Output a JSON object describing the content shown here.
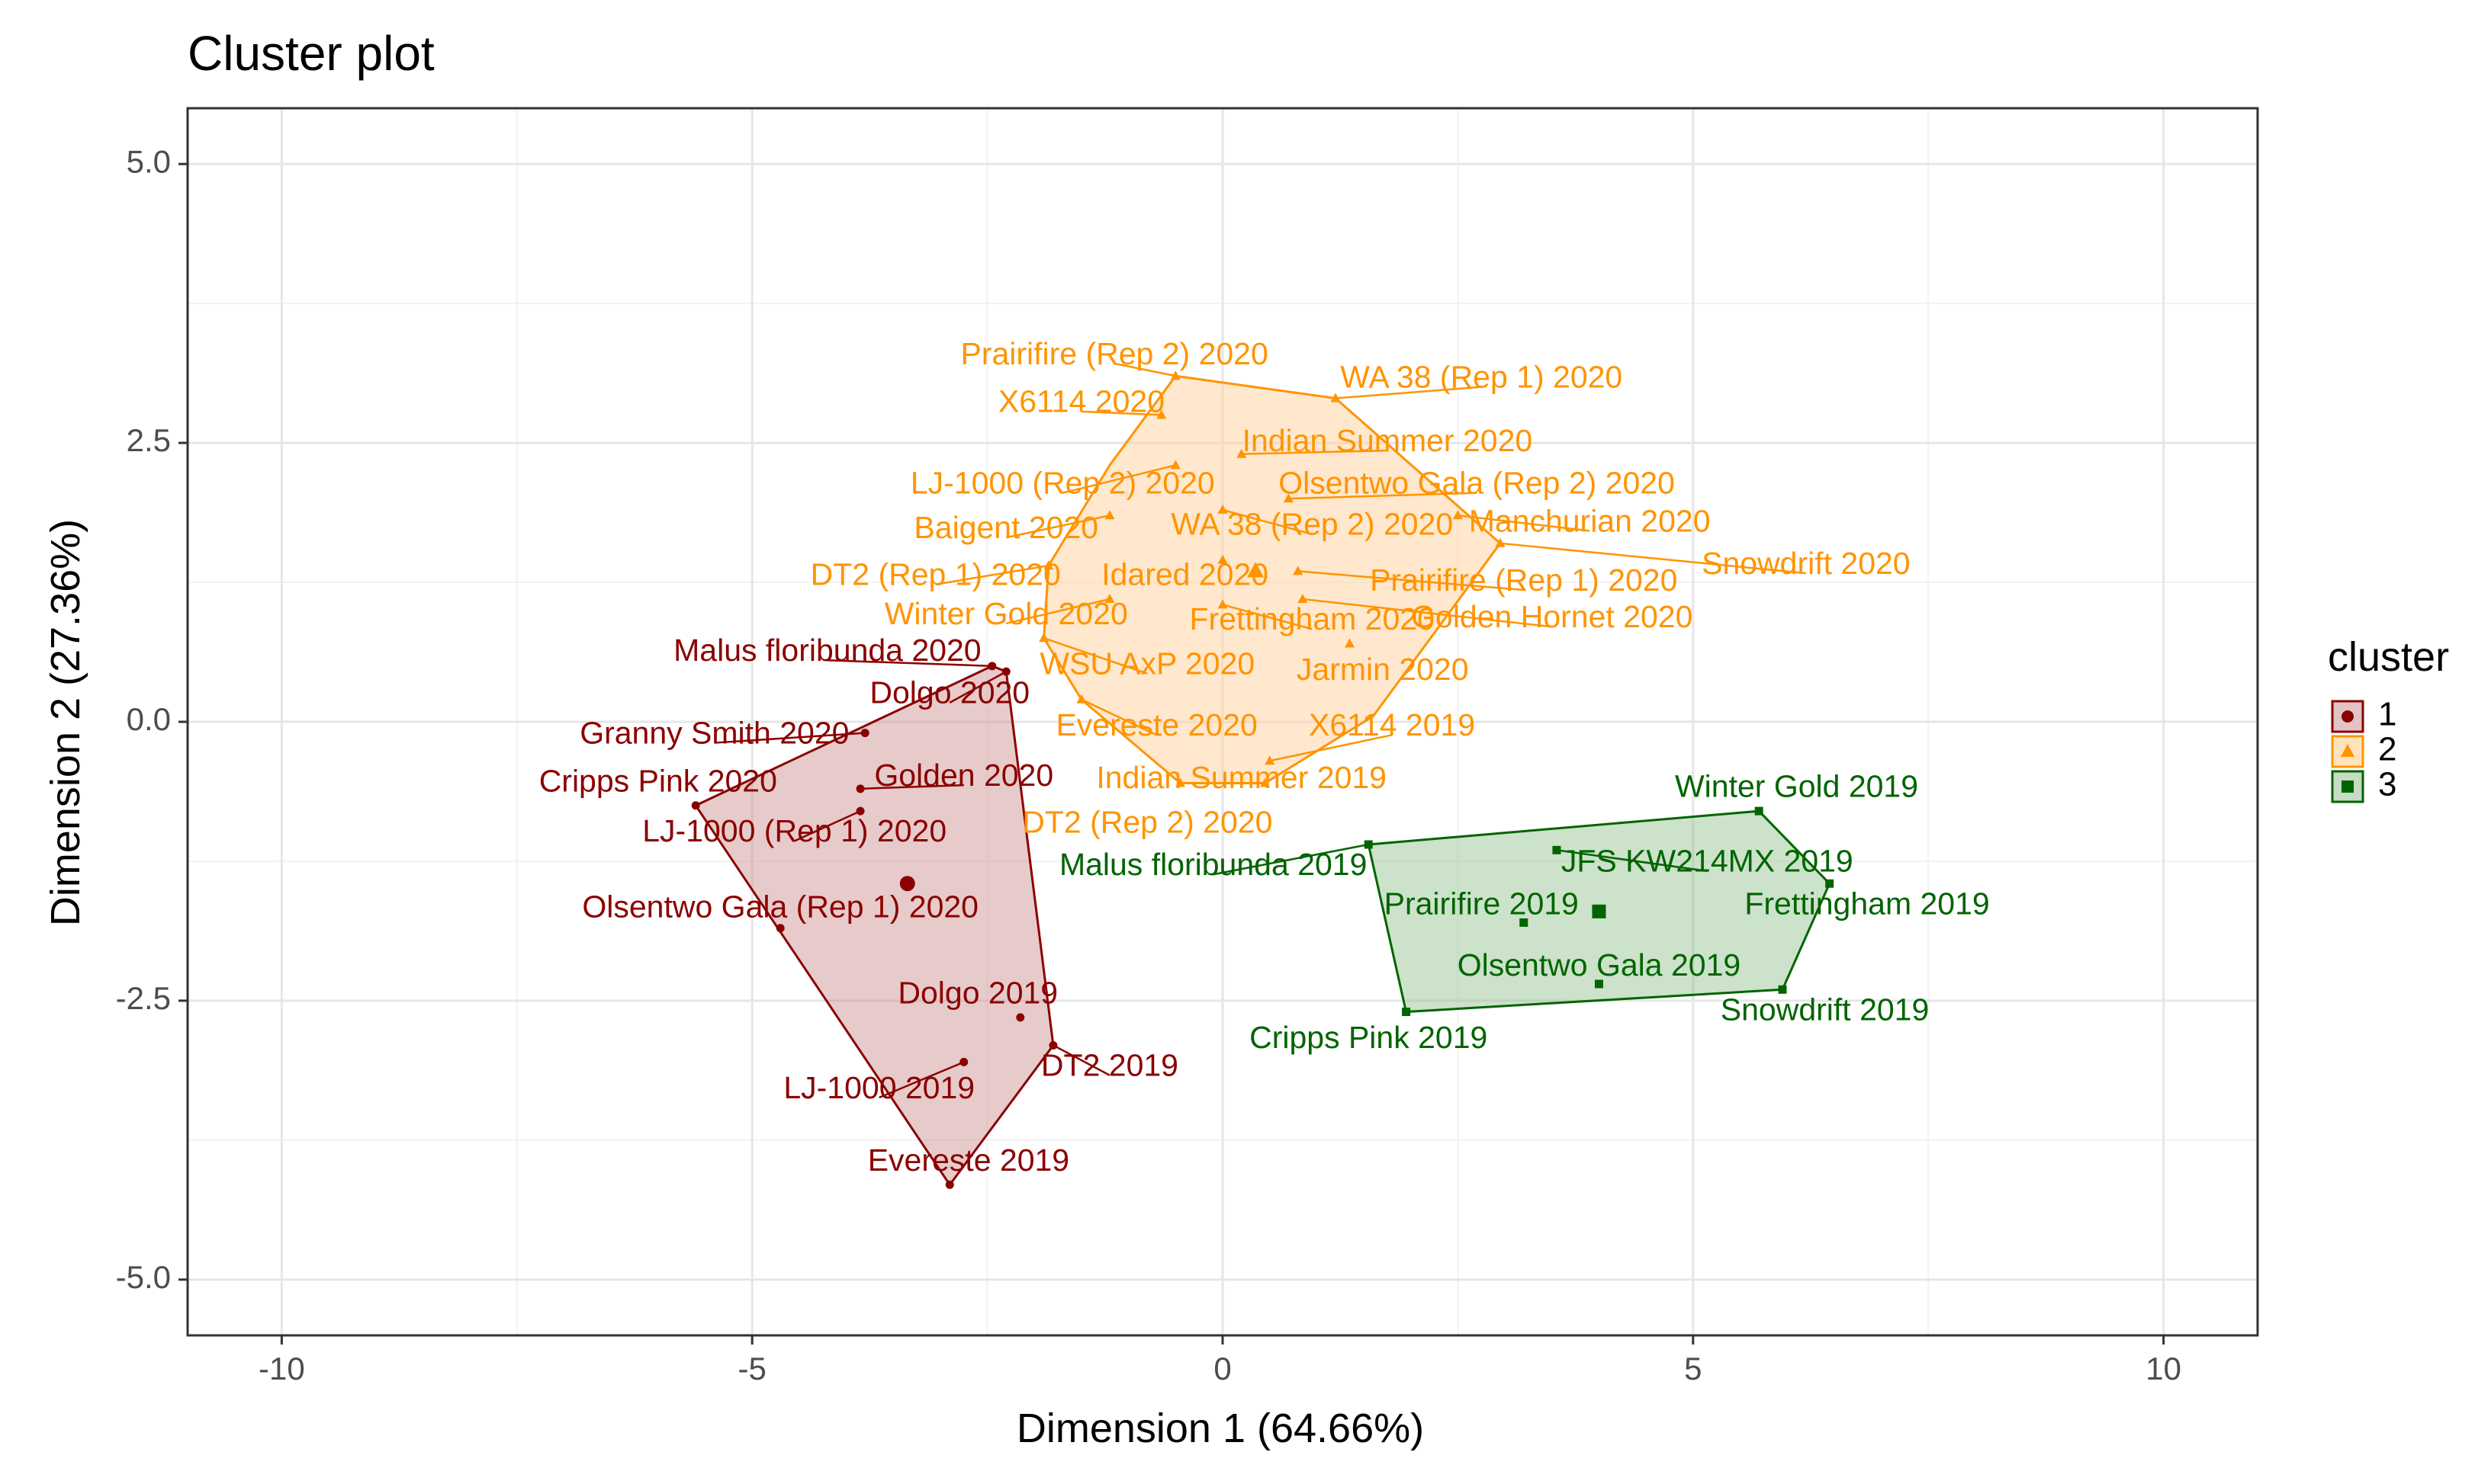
{
  "chart_data": {
    "type": "scatter",
    "title": "Cluster plot",
    "xlabel": "Dimension 1 (64.66%)",
    "ylabel": "Dimension 2 (27.36%)",
    "xlim": [
      -11,
      11
    ],
    "ylim": [
      -5.5,
      5.5
    ],
    "x_ticks": [
      -10,
      -5,
      0,
      5,
      10
    ],
    "x_tick_labels": [
      "-10",
      "-5",
      "0",
      "5",
      "10"
    ],
    "y_ticks": [
      -5,
      -2.5,
      0,
      2.5,
      5
    ],
    "y_tick_labels": [
      "-5.0",
      "-2.5",
      "0.0",
      "2.5",
      "5.0"
    ],
    "grid": true,
    "legend": {
      "title": "cluster",
      "placement": "right",
      "entries": [
        {
          "label": "1",
          "color": "#8b0000",
          "fill": "#e3c3c3"
        },
        {
          "label": "2",
          "color": "#ff9400",
          "fill": "#ffe3bd"
        },
        {
          "label": "3",
          "color": "#006400",
          "fill": "#c6dcc4"
        }
      ]
    },
    "colors": {
      "1": {
        "stroke": "#8b0000",
        "fill": "#c98c8c",
        "fill_opacity": 0.45
      },
      "2": {
        "stroke": "#ff9400",
        "fill": "#ffd19c",
        "fill_opacity": 0.5
      },
      "3": {
        "stroke": "#006400",
        "fill": "#8fbf8a",
        "fill_opacity": 0.45
      }
    },
    "centroids": [
      {
        "cluster": "1",
        "x": -3.35,
        "y": -1.45
      },
      {
        "cluster": "2",
        "x": 0.35,
        "y": 1.35
      },
      {
        "cluster": "3",
        "x": 4.0,
        "y": -1.7
      }
    ],
    "hulls": [
      {
        "cluster": "1",
        "x": [
          -2.45,
          -2.3,
          -1.8,
          -2.9,
          -5.6
        ],
        "y": [
          0.5,
          0.45,
          -2.9,
          -4.15,
          -0.75
        ]
      },
      {
        "cluster": "2",
        "x": [
          -0.5,
          1.2,
          2.95,
          1.6,
          0.45,
          -0.45,
          -1.5,
          -1.9,
          -1.85,
          -1.2
        ],
        "y": [
          3.1,
          2.9,
          1.6,
          0.05,
          -0.55,
          -0.55,
          0.2,
          0.75,
          1.4,
          2.3
        ]
      },
      {
        "cluster": "3",
        "x": 1.55,
        "y": -1.1
      },
      {
        "cluster": "3",
        "x": [
          1.55,
          5.7,
          6.45,
          5.95,
          1.95
        ],
        "y": [
          -1.1,
          -0.8,
          -1.45,
          -2.4,
          -2.6
        ]
      }
    ],
    "points": [
      {
        "label": "Malus floribunda 2020",
        "cluster": "1",
        "x": -2.45,
        "y": 0.5,
        "label_x": -4.2,
        "label_y": 0.62
      },
      {
        "label": "Dolgo 2020",
        "cluster": "1",
        "x": -2.3,
        "y": 0.45,
        "label_x": -2.9,
        "label_y": 0.24
      },
      {
        "label": "Granny Smith 2020",
        "cluster": "1",
        "x": -3.8,
        "y": -0.1,
        "label_x": -5.4,
        "label_y": -0.12
      },
      {
        "label": "Cripps Pink 2020",
        "cluster": "1",
        "x": -5.6,
        "y": -0.75,
        "label_x": -6.0,
        "label_y": -0.55
      },
      {
        "label": "Golden 2020",
        "cluster": "1",
        "x": -3.85,
        "y": -0.6,
        "label_x": -2.75,
        "label_y": -0.5
      },
      {
        "label": "LJ-1000 (Rep 1) 2020",
        "cluster": "1",
        "x": -3.85,
        "y": -0.8,
        "label_x": -4.55,
        "label_y": -1.0
      },
      {
        "label": "Olsentwo Gala (Rep 1) 2020",
        "cluster": "1",
        "x": -4.7,
        "y": -1.85,
        "label_x": -4.7,
        "label_y": -1.68
      },
      {
        "label": "Dolgo 2019",
        "cluster": "1",
        "x": -2.15,
        "y": -2.65,
        "label_x": -2.6,
        "label_y": -2.45
      },
      {
        "label": "DT2 2019",
        "cluster": "1",
        "x": -1.8,
        "y": -2.9,
        "label_x": -1.2,
        "label_y": -3.1
      },
      {
        "label": "LJ-1000 2019",
        "cluster": "1",
        "x": -2.75,
        "y": -3.05,
        "label_x": -3.65,
        "label_y": -3.3
      },
      {
        "label": "Evereste 2019",
        "cluster": "1",
        "x": -2.9,
        "y": -4.15,
        "label_x": -2.7,
        "label_y": -3.95
      },
      {
        "label": "Prairifire (Rep 2) 2020",
        "cluster": "2",
        "x": -0.5,
        "y": 3.1,
        "label_x": -1.15,
        "label_y": 3.28
      },
      {
        "label": "WA 38 (Rep 1) 2020",
        "cluster": "2",
        "x": 1.2,
        "y": 2.9,
        "label_x": 2.75,
        "label_y": 3.07
      },
      {
        "label": "X6114 2020",
        "cluster": "2",
        "x": -0.65,
        "y": 2.75,
        "label_x": -1.5,
        "label_y": 2.85
      },
      {
        "label": "Indian Summer 2020",
        "cluster": "2",
        "x": 0.2,
        "y": 2.4,
        "label_x": 1.75,
        "label_y": 2.5
      },
      {
        "label": "LJ-1000 (Rep 2) 2020",
        "cluster": "2",
        "x": -0.5,
        "y": 2.3,
        "label_x": -1.7,
        "label_y": 2.12
      },
      {
        "label": "Olsentwo Gala (Rep 2) 2020",
        "cluster": "2",
        "x": 0.7,
        "y": 2.0,
        "label_x": 2.7,
        "label_y": 2.12
      },
      {
        "label": "Baigent 2020",
        "cluster": "2",
        "x": -1.2,
        "y": 1.85,
        "label_x": -2.3,
        "label_y": 1.72
      },
      {
        "label": "WA 38 (Rep 2) 2020",
        "cluster": "2",
        "x": 0.0,
        "y": 1.9,
        "label_x": 0.95,
        "label_y": 1.75
      },
      {
        "label": "Manchurian 2020",
        "cluster": "2",
        "x": 2.5,
        "y": 1.85,
        "label_x": 3.9,
        "label_y": 1.78
      },
      {
        "label": "Snowdrift 2020",
        "cluster": "2",
        "x": 2.95,
        "y": 1.6,
        "label_x": 6.2,
        "label_y": 1.4
      },
      {
        "label": "DT2 (Rep 1) 2020",
        "cluster": "2",
        "x": -1.85,
        "y": 1.4,
        "label_x": -3.05,
        "label_y": 1.3
      },
      {
        "label": "Idared 2020",
        "cluster": "2",
        "x": 0.0,
        "y": 1.45,
        "label_x": -0.4,
        "label_y": 1.3
      },
      {
        "label": "Prairifire (Rep 1) 2020",
        "cluster": "2",
        "x": 0.8,
        "y": 1.35,
        "label_x": 3.2,
        "label_y": 1.25
      },
      {
        "label": "Winter Gold 2020",
        "cluster": "2",
        "x": -1.2,
        "y": 1.1,
        "label_x": -2.3,
        "label_y": 0.95
      },
      {
        "label": "Frettingham 2020",
        "cluster": "2",
        "x": 0.0,
        "y": 1.05,
        "label_x": 0.95,
        "label_y": 0.9
      },
      {
        "label": "Golden Hornet 2020",
        "cluster": "2",
        "x": 0.85,
        "y": 1.1,
        "label_x": 3.5,
        "label_y": 0.92
      },
      {
        "label": "WSU AxP 2020",
        "cluster": "2",
        "x": -1.9,
        "y": 0.75,
        "label_x": -0.8,
        "label_y": 0.5
      },
      {
        "label": "Jarmin 2020",
        "cluster": "2",
        "x": 1.35,
        "y": 0.7,
        "label_x": 1.7,
        "label_y": 0.45
      },
      {
        "label": "Evereste 2020",
        "cluster": "2",
        "x": -1.5,
        "y": 0.2,
        "label_x": -0.7,
        "label_y": -0.05
      },
      {
        "label": "X6114 2019",
        "cluster": "2",
        "x": 0.5,
        "y": -0.35,
        "label_x": 1.8,
        "label_y": -0.05
      },
      {
        "label": "Indian Summer 2019",
        "cluster": "2",
        "x": 0.45,
        "y": -0.55,
        "label_x": 0.2,
        "label_y": -0.52
      },
      {
        "label": "DT2 (Rep 2) 2020",
        "cluster": "2",
        "x": -0.45,
        "y": -0.55,
        "label_x": -0.8,
        "label_y": -0.92
      },
      {
        "label": "Malus floribunda 2019",
        "cluster": "3",
        "x": 1.55,
        "y": -1.1,
        "label_x": -0.1,
        "label_y": -1.3
      },
      {
        "label": "Winter Gold 2019",
        "cluster": "3",
        "x": 5.7,
        "y": -0.8,
        "label_x": 6.1,
        "label_y": -0.6
      },
      {
        "label": "JFS KW214MX 2019",
        "cluster": "3",
        "x": 3.55,
        "y": -1.15,
        "label_x": 5.15,
        "label_y": -1.27
      },
      {
        "label": "Prairifire 2019",
        "cluster": "3",
        "x": 3.2,
        "y": -1.8,
        "label_x": 2.75,
        "label_y": -1.65
      },
      {
        "label": "Frettingham 2019",
        "cluster": "3",
        "x": 6.45,
        "y": -1.45,
        "label_x": 6.85,
        "label_y": -1.65
      },
      {
        "label": "Olsentwo Gala 2019",
        "cluster": "3",
        "x": 4.0,
        "y": -2.35,
        "label_x": 4.0,
        "label_y": -2.2
      },
      {
        "label": "Snowdrift 2019",
        "cluster": "3",
        "x": 5.95,
        "y": -2.4,
        "label_x": 6.4,
        "label_y": -2.6
      },
      {
        "label": "Cripps Pink 2019",
        "cluster": "3",
        "x": 1.95,
        "y": -2.6,
        "label_x": 1.55,
        "label_y": -2.85
      }
    ]
  }
}
